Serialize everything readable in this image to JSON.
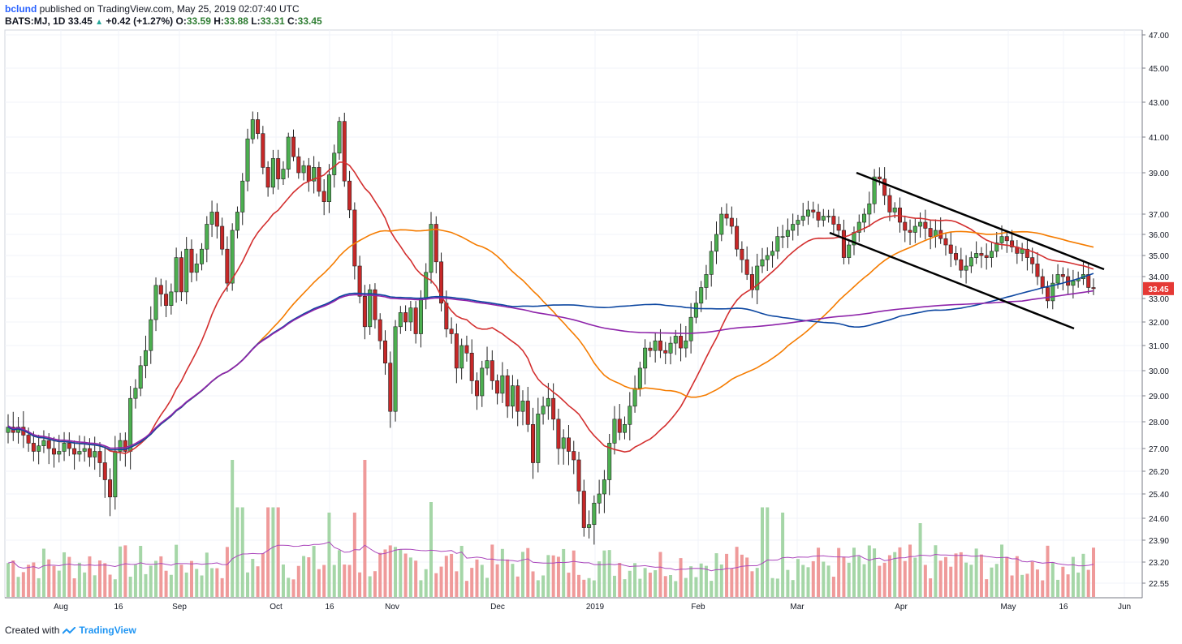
{
  "header": {
    "user": "bclund",
    "published": "published on TradingView.com, May 25, 2019 02:07:40 UTC",
    "symbol": "BATS:MJ, 1D",
    "last": "33.45",
    "change": "+0.42 (+1.27%)",
    "o_label": "O:",
    "o_val": "33.59",
    "h_label": "H:",
    "h_val": "33.88",
    "l_label": "L:",
    "l_val": "33.31",
    "c_label": "C:",
    "c_val": "33.45"
  },
  "footer": {
    "created_with": "Created with",
    "brand": "TradingView"
  },
  "chart_data": {
    "type": "candlestick",
    "y_ticks": [
      "47.00",
      "45.00",
      "43.00",
      "41.00",
      "39.00",
      "37.00",
      "36.00",
      "35.00",
      "34.00",
      "33.00",
      "32.00",
      "31.00",
      "30.00",
      "29.00",
      "28.00",
      "27.00",
      "26.20",
      "25.40",
      "24.60",
      "23.90",
      "23.20",
      "22.55"
    ],
    "x_ticks": [
      "Aug",
      "16",
      "Sep",
      "Oct",
      "16",
      "Nov",
      "Dec",
      "2019",
      "Feb",
      "Mar",
      "Apr",
      "May",
      "16",
      "Jun"
    ],
    "last_price_label": "33.45",
    "colors": {
      "up": "#4caf50",
      "down": "#c62828",
      "ma_red": "#d32f2f",
      "ma_orange": "#f57c00",
      "ma_blue": "#0d47a1",
      "ma_purple": "#8e24aa",
      "volume_up": "#a5d6a7",
      "volume_down": "#ef9a9a",
      "volume_ma": "#ab47bc",
      "last_tag": "#e53935"
    },
    "candles_close": [
      27.8,
      27.6,
      27.8,
      27.5,
      27.2,
      26.9,
      27.1,
      27.3,
      27.0,
      26.8,
      26.9,
      27.2,
      27.0,
      26.8,
      26.9,
      27.0,
      26.7,
      26.9,
      26.5,
      25.9,
      25.3,
      26.9,
      27.3,
      26.9,
      28.9,
      29.3,
      30.2,
      30.8,
      32.1,
      33.6,
      33.2,
      32.7,
      33.3,
      34.9,
      33.3,
      35.3,
      34.2,
      34.6,
      35.3,
      36.5,
      37.1,
      36.4,
      35.3,
      33.7,
      36.2,
      37.1,
      38.6,
      40.9,
      42.0,
      41.2,
      39.3,
      38.3,
      39.8,
      38.7,
      39.2,
      41.0,
      39.9,
      39.0,
      39.4,
      38.6,
      39.3,
      38.1,
      37.6,
      38.9,
      40.1,
      41.9,
      38.6,
      37.2,
      34.5,
      33.1,
      31.8,
      33.4,
      32.1,
      31.2,
      30.3,
      28.4,
      31.8,
      32.4,
      32.0,
      32.6,
      31.5,
      33.0,
      34.2,
      36.5,
      34.7,
      32.8,
      31.7,
      31.5,
      30.1,
      31.0,
      30.7,
      29.6,
      29.0,
      30.1,
      30.4,
      29.6,
      29.1,
      29.8,
      28.6,
      29.4,
      28.4,
      28.8,
      27.9,
      26.5,
      28.3,
      28.6,
      28.9,
      28.1,
      27.0,
      27.4,
      26.9,
      26.6,
      25.5,
      24.3,
      24.4,
      25.1,
      25.4,
      25.9,
      27.2,
      28.1,
      27.6,
      27.9,
      28.6,
      29.3,
      30.1,
      30.9,
      30.8,
      31.2,
      30.8,
      30.7,
      31.1,
      31.4,
      30.9,
      31.2,
      32.2,
      32.8,
      33.5,
      34.1,
      35.2,
      36.0,
      37.0,
      36.8,
      36.4,
      35.3,
      34.8,
      34.1,
      33.4,
      34.5,
      34.8,
      35.0,
      35.2,
      35.9,
      35.9,
      36.2,
      36.5,
      36.7,
      36.9,
      37.2,
      37.1,
      36.7,
      36.9,
      36.9,
      36.5,
      36.2,
      34.9,
      35.5,
      36.1,
      36.6,
      37.0,
      37.5,
      38.8,
      38.7,
      37.9,
      37.1,
      37.3,
      36.6,
      36.2,
      36.1,
      36.4,
      36.6,
      36.3,
      35.9,
      36.2,
      35.8,
      35.5,
      35.1,
      34.8,
      34.3,
      34.5,
      34.9,
      35.1,
      35.0,
      34.9,
      35.2,
      35.6,
      35.9,
      35.7,
      35.4,
      35.1,
      35.3,
      34.9,
      34.6,
      34.0,
      33.5,
      32.9,
      33.7,
      34.1,
      34.0,
      33.6,
      33.8,
      33.9,
      34.1,
      33.5,
      33.45
    ],
    "ma_red_values": "approx. 20-day MA",
    "ma_orange_values": "approx. 50-day MA",
    "ma_blue_values": "approx. 100-day MA",
    "ma_purple_values": "approx. 200-day MA",
    "channel": "descending channel drawn Mar–May"
  }
}
